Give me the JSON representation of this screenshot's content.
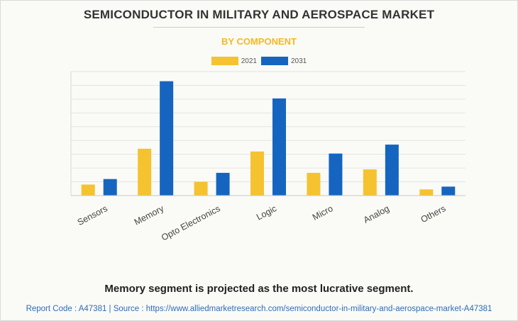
{
  "header": {
    "title": "SEMICONDUCTOR IN MILITARY AND AEROSPACE MARKET",
    "subtitle": "BY COMPONENT"
  },
  "footer": {
    "conclusion": "Memory segment is projected as the most lucrative segment.",
    "source": "Report Code : A47381  |  Source : https://www.alliedmarketresearch.com/semiconductor-in-military-and-aerospace-market-A47381"
  },
  "chart_data": {
    "type": "bar",
    "categories": [
      "Sensors",
      "Memory",
      "Opto Electronics",
      "Logic",
      "Micro",
      "Analog",
      "Others"
    ],
    "series": [
      {
        "name": "2021",
        "color": "#f5c330",
        "values": [
          0.8,
          3.4,
          1.0,
          3.2,
          1.65,
          1.9,
          0.45
        ]
      },
      {
        "name": "2031",
        "color": "#1565c0",
        "values": [
          1.2,
          8.3,
          1.65,
          7.05,
          3.05,
          3.7,
          0.65
        ]
      }
    ],
    "ylim": [
      0,
      9
    ],
    "grid": true,
    "legend_position": "top-center",
    "tick_labels_shown": false
  }
}
